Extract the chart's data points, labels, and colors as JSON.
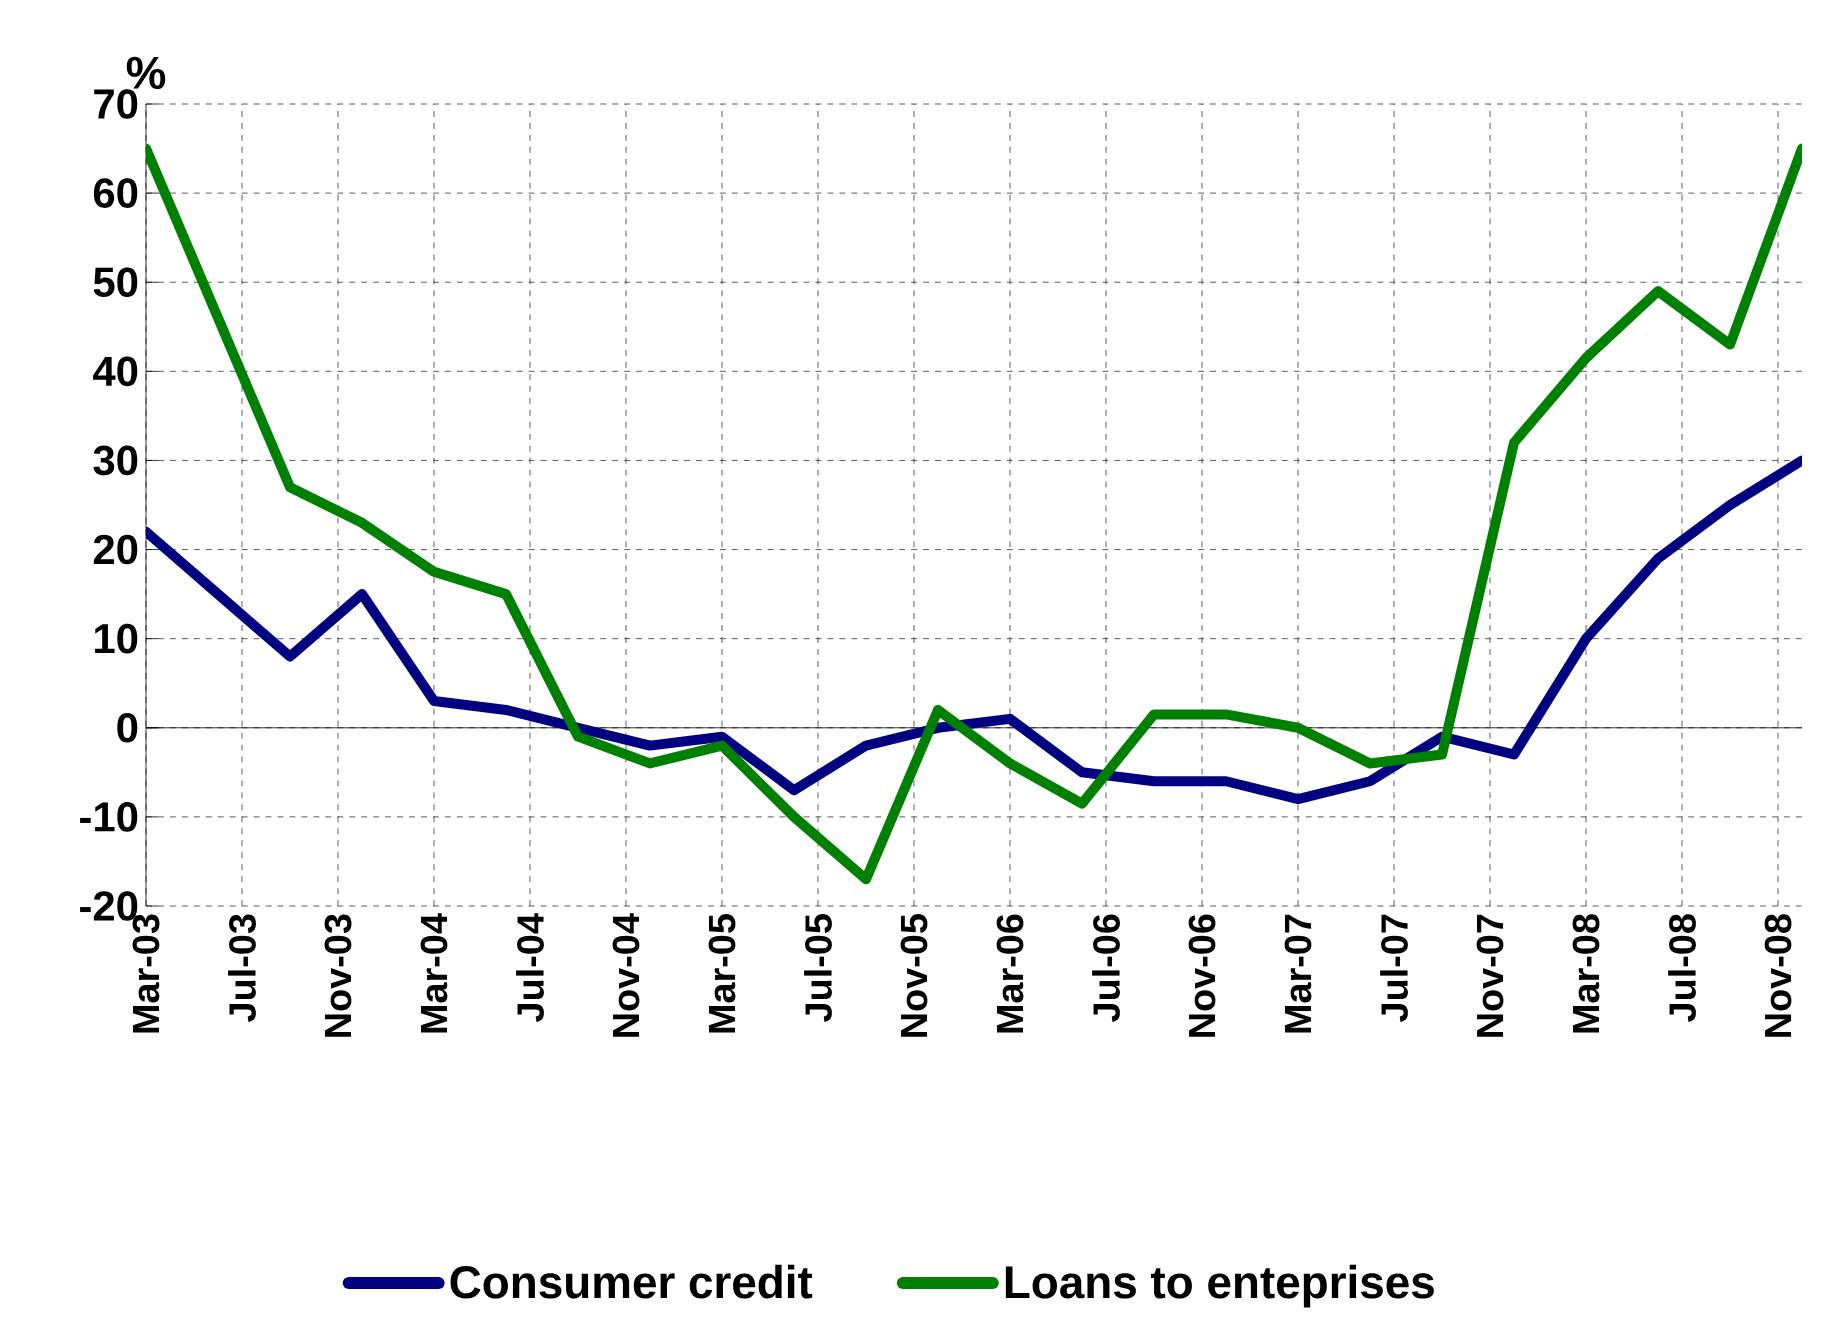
{
  "chart_data": {
    "type": "line",
    "ylabel": "%",
    "x": [
      "2003-03",
      "2003-06",
      "2003-09",
      "2003-12",
      "2004-03",
      "2004-06",
      "2004-09",
      "2004-12",
      "2005-03",
      "2005-06",
      "2005-09",
      "2005-12",
      "2006-03",
      "2006-06",
      "2006-09",
      "2006-12",
      "2007-03",
      "2007-06",
      "2007-09",
      "2007-12",
      "2008-03",
      "2008-06",
      "2008-09",
      "2008-12"
    ],
    "series": [
      {
        "name": "Consumer credit",
        "color": "#000080",
        "values": [
          22,
          15,
          8,
          15,
          3,
          2,
          0,
          -2,
          -1,
          -7,
          -2,
          0,
          1,
          -5,
          -6,
          -6,
          -8,
          -6,
          -1,
          -3,
          10,
          19,
          25,
          30
        ]
      },
      {
        "name": "Loans to enteprises",
        "color": "#008000",
        "values": [
          65,
          46,
          27,
          23,
          17.5,
          15,
          -1,
          -4,
          -2,
          -10,
          -17,
          2,
          -4,
          -8.5,
          1.5,
          1.5,
          0,
          -4,
          -3,
          32,
          41.5,
          49,
          43,
          65
        ]
      }
    ],
    "xlim": [
      "2003-03",
      "2008-12"
    ],
    "xticks": [
      {
        "value": "2003-03",
        "label": "Mar-03"
      },
      {
        "value": "2003-07",
        "label": "Jul-03"
      },
      {
        "value": "2003-11",
        "label": "Nov-03"
      },
      {
        "value": "2004-03",
        "label": "Mar-04"
      },
      {
        "value": "2004-07",
        "label": "Jul-04"
      },
      {
        "value": "2004-11",
        "label": "Nov-04"
      },
      {
        "value": "2005-03",
        "label": "Mar-05"
      },
      {
        "value": "2005-07",
        "label": "Jul-05"
      },
      {
        "value": "2005-11",
        "label": "Nov-05"
      },
      {
        "value": "2006-03",
        "label": "Mar-06"
      },
      {
        "value": "2006-07",
        "label": "Jul-06"
      },
      {
        "value": "2006-11",
        "label": "Nov-06"
      },
      {
        "value": "2007-03",
        "label": "Mar-07"
      },
      {
        "value": "2007-07",
        "label": "Jul-07"
      },
      {
        "value": "2007-11",
        "label": "Nov-07"
      },
      {
        "value": "2008-03",
        "label": "Mar-08"
      },
      {
        "value": "2008-07",
        "label": "Jul-08"
      },
      {
        "value": "2008-11",
        "label": "Nov-08"
      }
    ],
    "ylim": [
      -20,
      70
    ],
    "yticks": [
      -20,
      -10,
      0,
      10,
      20,
      30,
      40,
      50,
      60,
      70
    ],
    "grid": true,
    "legend": "bottom",
    "marker": "none",
    "line_style": "solid"
  }
}
